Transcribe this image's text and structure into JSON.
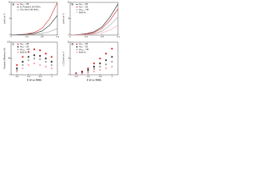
{
  "chart_data": [
    {
      "type": "line",
      "panel": "a",
      "ylabel": "j (mA cm⁻²)",
      "x": [
        0,
        -0.2,
        -0.4,
        -0.6,
        -0.8,
        -1.0,
        -1.2
      ],
      "xlim": [
        0,
        -1.2
      ],
      "xticks": [
        0,
        -0.4,
        -0.8,
        -1.2
      ],
      "ylim": [
        0,
        10
      ],
      "yticks": [
        0,
        5,
        10
      ],
      "series": [
        {
          "name": "Au₅₅ - CB",
          "color": "#d62020",
          "values": [
            0,
            0.1,
            0.3,
            0.8,
            2,
            5,
            10
          ]
        },
        {
          "name": "N₂ Purged 0.1M HNO₃",
          "color": "#222222",
          "values": [
            0,
            0.1,
            0.2,
            0.5,
            1.2,
            3,
            6
          ]
        },
        {
          "name": "CO₂ Sat 0.1M HNO₃",
          "color": "#999999",
          "values": [
            0,
            0,
            0.1,
            0.2,
            0.5,
            1,
            2
          ]
        }
      ]
    },
    {
      "type": "line",
      "panel": "b",
      "ylabel": "j (mA cm⁻²)",
      "x": [
        0,
        -0.2,
        -0.4,
        -0.6,
        -0.8,
        -1.0,
        -1.2
      ],
      "xlim": [
        0,
        -1.2
      ],
      "xticks": [
        0,
        -0.4,
        -0.8,
        -1.2
      ],
      "ylim": [
        0,
        10
      ],
      "yticks": [
        0,
        5,
        10
      ],
      "series": [
        {
          "name": "Au₂₅ - CB",
          "color": "#222222",
          "values": [
            0,
            0.1,
            0.4,
            1,
            2.5,
            5.5,
            9.5
          ]
        },
        {
          "name": "Au₅₅ - CB",
          "color": "#d62020",
          "values": [
            0,
            0.1,
            0.3,
            0.8,
            2,
            4.5,
            8
          ]
        },
        {
          "name": "Au₁₄₄ - CB",
          "color": "#999999",
          "values": [
            0,
            0.1,
            0.2,
            0.5,
            1.2,
            3,
            5.5
          ]
        },
        {
          "name": "Bulk Au",
          "color": "#f0a0a8",
          "values": [
            0,
            0,
            0.1,
            0.3,
            0.7,
            1.5,
            3
          ]
        }
      ]
    },
    {
      "type": "scatter",
      "panel": "c",
      "ylabel": "Faradaic Efficiency (%)",
      "xlabel": "E (V vs RHE)",
      "x": [
        -0.4,
        -0.5,
        -0.6,
        -0.7,
        -0.8,
        -0.9,
        -1.0
      ],
      "xlim": [
        -0.3,
        -1.1
      ],
      "xticks": [
        -0.4,
        -0.6,
        -0.8,
        -1.0
      ],
      "ylim": [
        0,
        100
      ],
      "yticks": [
        0,
        50,
        100
      ],
      "series": [
        {
          "name": "Au₅₅ - CB",
          "color": "#d62020",
          "values": [
            30,
            55,
            70,
            78,
            75,
            65,
            55
          ]
        },
        {
          "name": "Au₂₅ - CB",
          "color": "#222222",
          "values": [
            20,
            40,
            55,
            60,
            58,
            50,
            40
          ]
        },
        {
          "name": "Au₁₄₄ - CB",
          "color": "#999999",
          "values": [
            15,
            30,
            45,
            50,
            48,
            40,
            30
          ]
        },
        {
          "name": "Bulk Au",
          "color": "#f0a0a8",
          "values": [
            10,
            20,
            30,
            35,
            30,
            25,
            20
          ]
        }
      ]
    },
    {
      "type": "scatter",
      "panel": "d",
      "ylabel": "j CO (mA cm⁻²)",
      "xlabel": "E (V vs RHE)",
      "x": [
        -0.4,
        -0.5,
        -0.6,
        -0.7,
        -0.8,
        -0.9,
        -1.0
      ],
      "xlim": [
        -0.3,
        -1.1
      ],
      "xticks": [
        -0.4,
        -0.6,
        -0.8,
        -1.0
      ],
      "ylim": [
        0,
        10
      ],
      "yticks": [
        0,
        5,
        10
      ],
      "series": [
        {
          "name": "Au₅₅ - CB",
          "color": "#d62020",
          "values": [
            0.5,
            1,
            2,
            3.5,
            5,
            6.5,
            8
          ]
        },
        {
          "name": "Au₂₅ - CB",
          "color": "#222222",
          "values": [
            0.3,
            0.8,
            1.5,
            2.5,
            3.5,
            4.5,
            5.5
          ]
        },
        {
          "name": "Au₁₄₄ - CB",
          "color": "#999999",
          "values": [
            0.2,
            0.5,
            1,
            1.8,
            2.5,
            3.2,
            4
          ]
        },
        {
          "name": "Bulk Au",
          "color": "#f0a0a8",
          "values": [
            0.1,
            0.3,
            0.6,
            1,
            1.5,
            2,
            2.5
          ]
        }
      ]
    }
  ]
}
